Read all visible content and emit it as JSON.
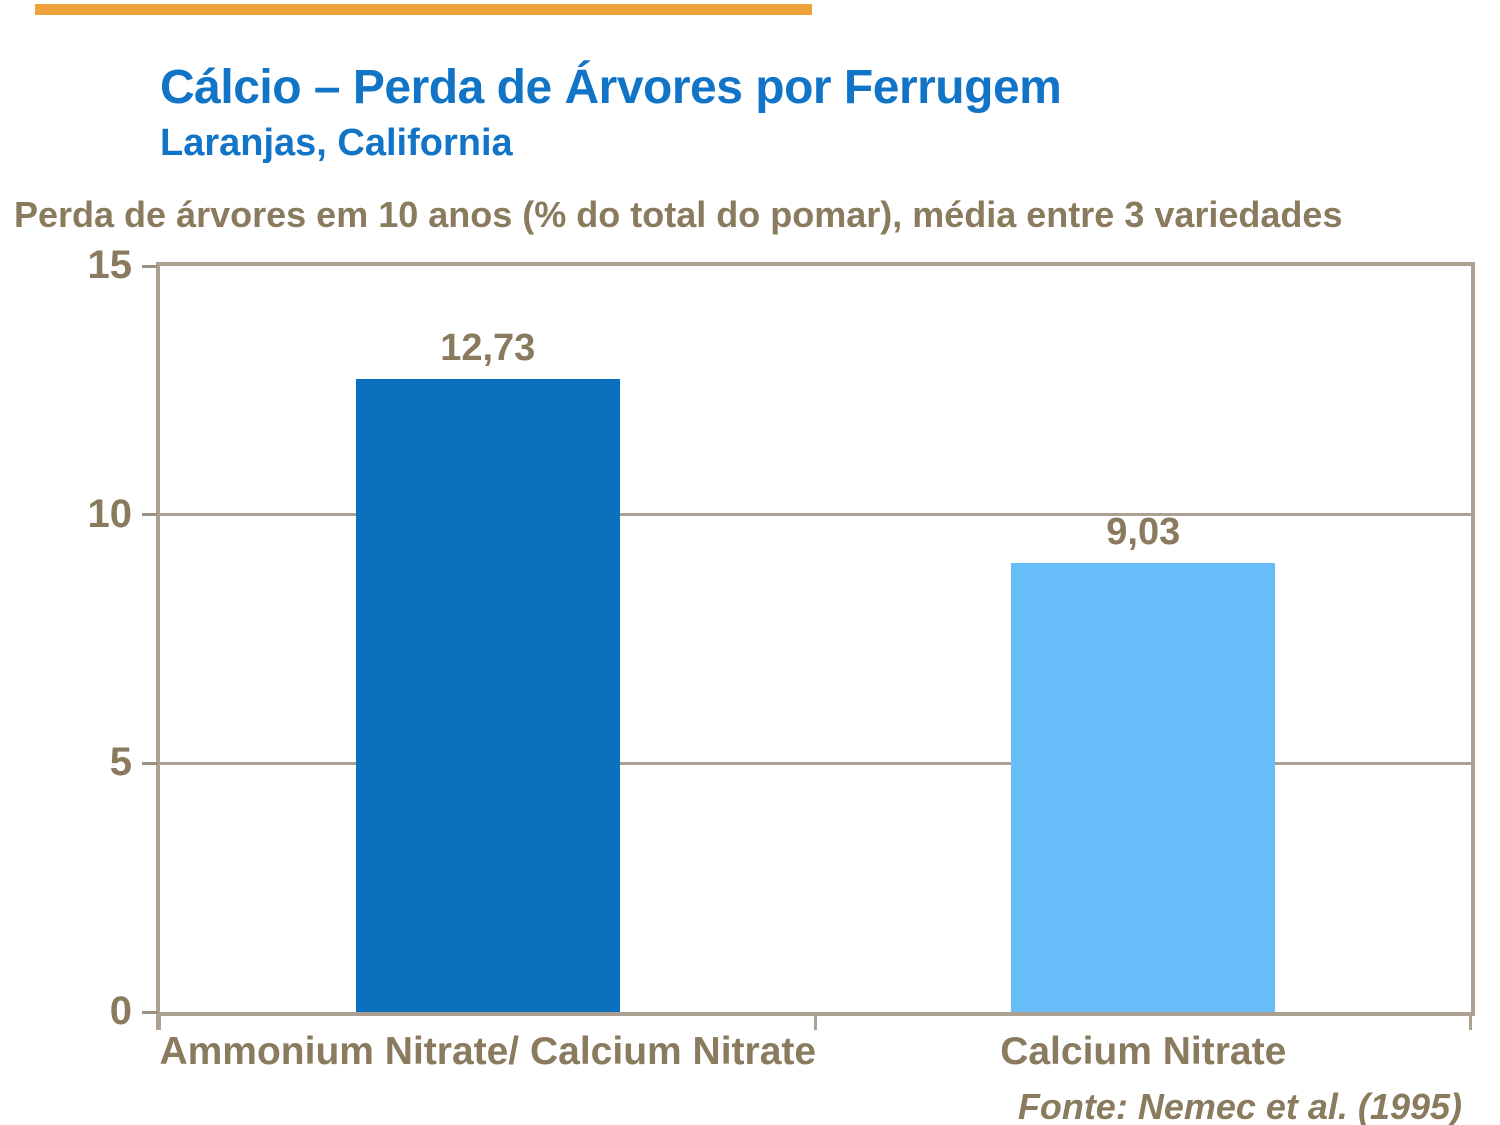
{
  "header": {
    "title": "Cálcio – Perda de Árvores por Ferrugem",
    "subtitle": "Laranjas, California"
  },
  "source": "Fonte: Nemec et al. (1995)",
  "colors": {
    "accent_orange": "#F0A23A",
    "title_blue": "#1274C7",
    "text_brown": "#8A7A5E",
    "line_tan": "#ACA092",
    "gridline_tan": "#ABA091",
    "tick_tan": "#9C9081",
    "background": "#FFFFFF"
  },
  "chart_data": {
    "type": "bar",
    "title": "Cálcio – Perda de Árvores por Ferrugem",
    "subtitle": "Laranjas, California",
    "ylabel": "Perda de árvores em 10 anos (% do total do pomar), média entre 3 variedades",
    "categories": [
      "Ammonium Nitrate/ Calcium Nitrate",
      "Calcium Nitrate"
    ],
    "values": [
      12.73,
      9.03
    ],
    "value_labels": [
      "12,73",
      "9,03"
    ],
    "bar_colors": [
      "#0B70BD",
      "#66BDF8"
    ],
    "ylim": [
      0,
      15
    ],
    "yticks": [
      0,
      5,
      10,
      15
    ],
    "grid": true,
    "legend": "none",
    "source": "Fonte: Nemec et al. (1995)"
  }
}
